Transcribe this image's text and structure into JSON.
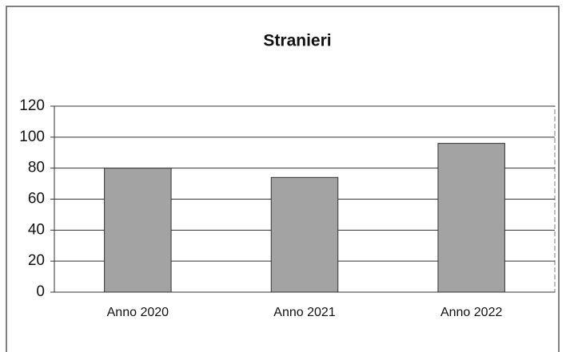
{
  "chart_data": {
    "type": "bar",
    "title": "Stranieri",
    "categories": [
      "Anno 2020",
      "Anno 2021",
      "Anno 2022"
    ],
    "values": [
      80,
      74,
      96
    ],
    "color": "#a3a3a3",
    "ylim": [
      0,
      120
    ],
    "yticks": [
      0,
      20,
      40,
      60,
      80,
      100,
      120
    ],
    "grid": true
  }
}
